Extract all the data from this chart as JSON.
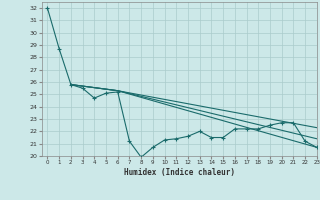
{
  "bg_color": "#cce8e8",
  "grid_color": "#aacccc",
  "line_color": "#1a6b6b",
  "xlabel": "Humidex (Indice chaleur)",
  "xlim": [
    -0.5,
    23
  ],
  "ylim": [
    20,
    32.5
  ],
  "yticks": [
    20,
    21,
    22,
    23,
    24,
    25,
    26,
    27,
    28,
    29,
    30,
    31,
    32
  ],
  "xticks": [
    0,
    1,
    2,
    3,
    4,
    5,
    6,
    7,
    8,
    9,
    10,
    11,
    12,
    13,
    14,
    15,
    16,
    17,
    18,
    19,
    20,
    21,
    22,
    23
  ],
  "series": [
    {
      "x": [
        0,
        1,
        2,
        3,
        4,
        5,
        6,
        7,
        8,
        9,
        10,
        11,
        12,
        13,
        14,
        15,
        16,
        17,
        18,
        19,
        20,
        21,
        22,
        23
      ],
      "y": [
        32,
        28.7,
        25.8,
        25.5,
        24.7,
        25.1,
        25.2,
        21.2,
        19.9,
        20.7,
        21.3,
        21.4,
        21.6,
        22.0,
        21.5,
        21.5,
        22.2,
        22.2,
        22.2,
        22.5,
        22.7,
        22.7,
        21.2,
        20.7
      ],
      "marker": true
    },
    {
      "x": [
        2,
        6,
        23
      ],
      "y": [
        25.8,
        25.3,
        22.3
      ],
      "marker": false
    },
    {
      "x": [
        2,
        6,
        23
      ],
      "y": [
        25.8,
        25.3,
        21.4
      ],
      "marker": false
    },
    {
      "x": [
        2,
        6,
        23
      ],
      "y": [
        25.8,
        25.3,
        20.7
      ],
      "marker": false
    }
  ]
}
